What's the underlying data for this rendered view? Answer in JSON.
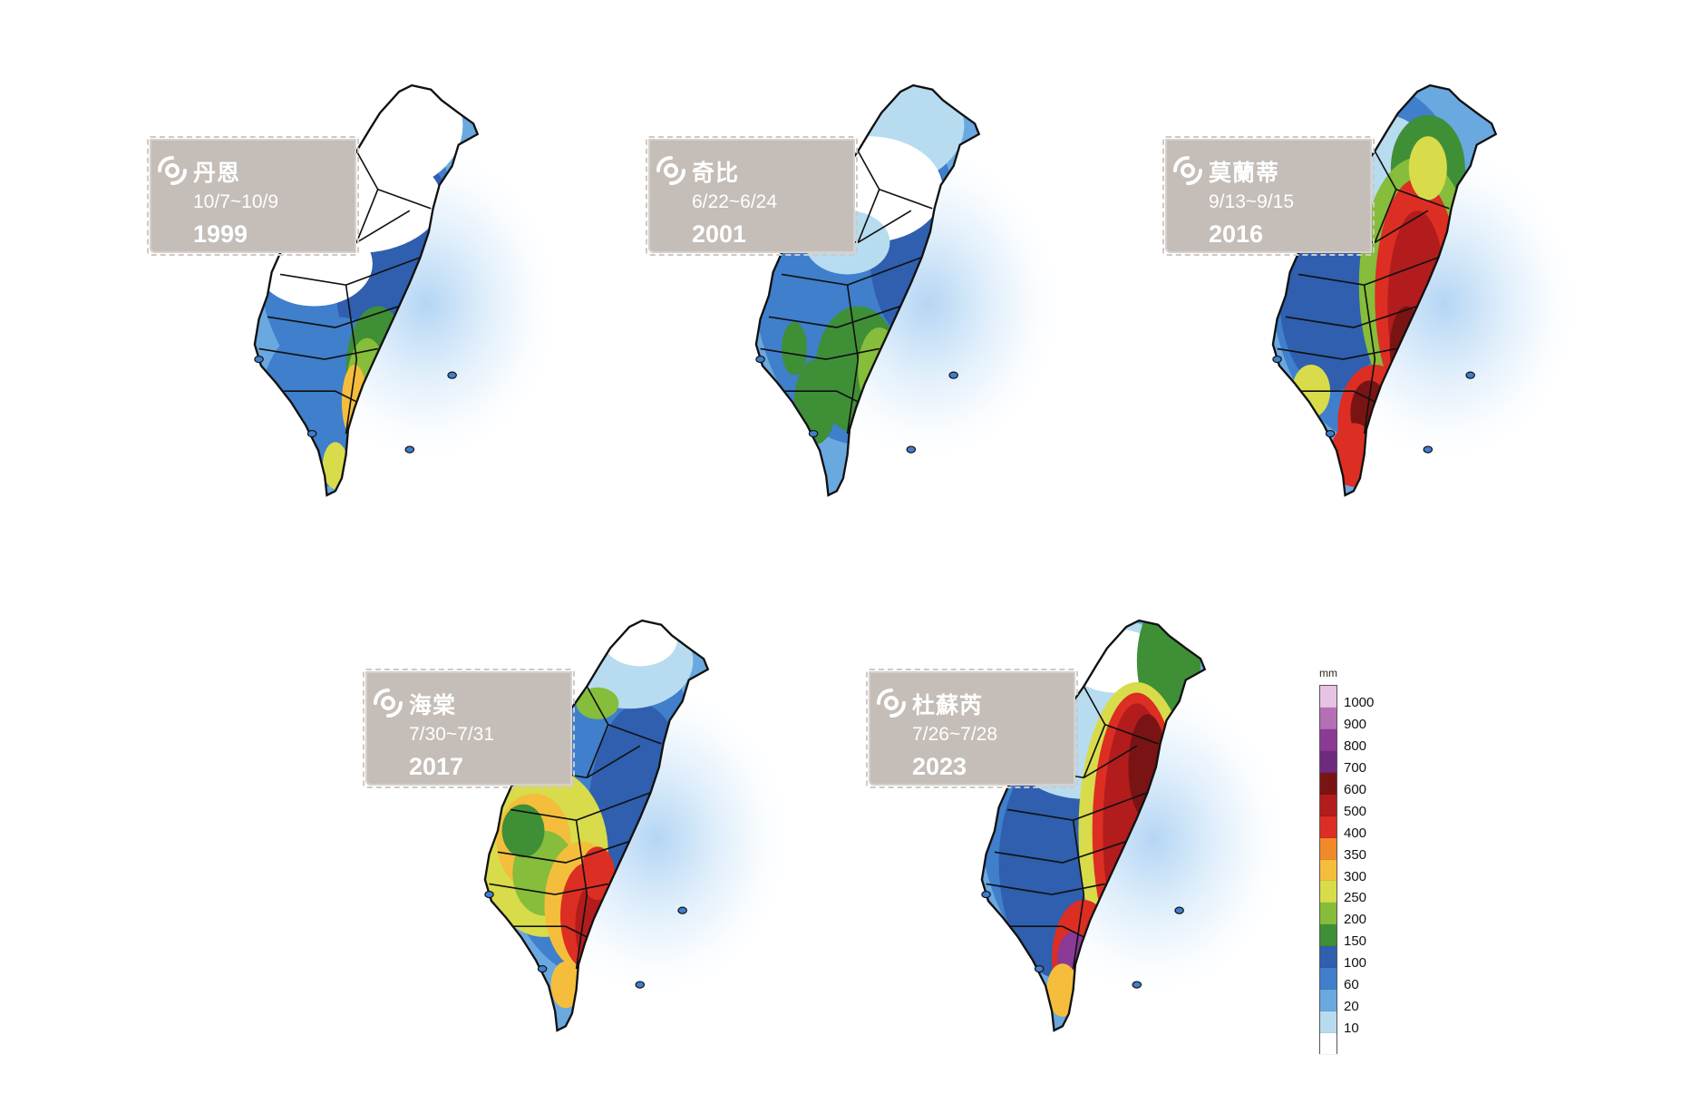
{
  "panels": [
    {
      "name": "丹恩",
      "dates": "10/7~10/9",
      "year": "1999",
      "scheme": "danny"
    },
    {
      "name": "奇比",
      "dates": "6/22~6/24",
      "year": "2001",
      "scheme": "chebi"
    },
    {
      "name": "莫蘭蒂",
      "dates": "9/13~9/15",
      "year": "2016",
      "scheme": "meranti"
    },
    {
      "name": "海棠",
      "dates": "7/30~7/31",
      "year": "2017",
      "scheme": "haitang"
    },
    {
      "name": "杜蘇芮",
      "dates": "7/26~7/28",
      "year": "2023",
      "scheme": "doksuri"
    }
  ],
  "legend": {
    "unit": "mm",
    "levels": [
      {
        "label": "1000",
        "color": "#e7c3e3"
      },
      {
        "label": "900",
        "color": "#b56fb5"
      },
      {
        "label": "800",
        "color": "#8b3a96"
      },
      {
        "label": "700",
        "color": "#6e2b7e"
      },
      {
        "label": "600",
        "color": "#7a1414"
      },
      {
        "label": "500",
        "color": "#b21c1c"
      },
      {
        "label": "400",
        "color": "#dc2e23"
      },
      {
        "label": "350",
        "color": "#ef8a2a"
      },
      {
        "label": "300",
        "color": "#f4be3c"
      },
      {
        "label": "250",
        "color": "#d8dc4a"
      },
      {
        "label": "200",
        "color": "#86bd3a"
      },
      {
        "label": "150",
        "color": "#3f8f37"
      },
      {
        "label": "100",
        "color": "#2f5fae"
      },
      {
        "label": "60",
        "color": "#3f7fcc"
      },
      {
        "label": "20",
        "color": "#6aa8e0"
      },
      {
        "label": "10",
        "color": "#b7dcf0"
      }
    ]
  },
  "icon": "typhoon-icon"
}
